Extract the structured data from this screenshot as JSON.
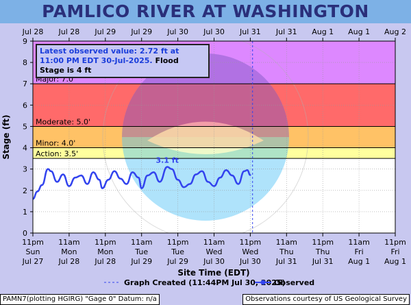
{
  "title": "PAMLICO RIVER AT WASHINGTON",
  "info": {
    "latest": "Latest observed value: 2.72 ft at 11:00 PM EDT 30-Jul-2025.",
    "flood": "Flood Stage is 4 ft"
  },
  "footer": {
    "left": "PAMN7(plotting HGIRG) \"Gage 0\" Datum: n/a",
    "right": "Observations courtesy of US Geological Survey"
  },
  "watermark_icon": "noaa-logo-icon",
  "chart_data": {
    "type": "line",
    "title": "PAMLICO RIVER AT WASHINGTON",
    "xlabel": "Site Time (EDT)",
    "ylabel": "Stage (ft)",
    "ylim": [
      0,
      9
    ],
    "yticks": [
      0,
      1,
      2,
      3,
      4,
      5,
      6,
      7,
      8,
      9
    ],
    "x_range_hours": [
      0,
      120
    ],
    "bottom_ticks": [
      {
        "h": 0,
        "l1": "11pm",
        "l2": "Sun",
        "l3": "Jul 27"
      },
      {
        "h": 12,
        "l1": "11am",
        "l2": "Mon",
        "l3": "Jul 28"
      },
      {
        "h": 24,
        "l1": "11pm",
        "l2": "Mon",
        "l3": "Jul 28"
      },
      {
        "h": 36,
        "l1": "11am",
        "l2": "Tue",
        "l3": "Jul 29"
      },
      {
        "h": 48,
        "l1": "11pm",
        "l2": "Tue",
        "l3": "Jul 29"
      },
      {
        "h": 60,
        "l1": "11am",
        "l2": "Wed",
        "l3": "Jul 30"
      },
      {
        "h": 72,
        "l1": "11pm",
        "l2": "Wed",
        "l3": "Jul 30"
      },
      {
        "h": 84,
        "l1": "11am",
        "l2": "Thu",
        "l3": "Jul 31"
      },
      {
        "h": 96,
        "l1": "11pm",
        "l2": "Thu",
        "l3": "Jul 31"
      },
      {
        "h": 108,
        "l1": "11am",
        "l2": "Fri",
        "l3": "Aug 1"
      },
      {
        "h": 120,
        "l1": "11pm",
        "l2": "Fri",
        "l3": "Aug 1"
      }
    ],
    "top_ticks": [
      {
        "h": 0,
        "label": "Jul 28"
      },
      {
        "h": 12,
        "label": "Jul 28"
      },
      {
        "h": 24,
        "label": "Jul 29"
      },
      {
        "h": 36,
        "label": "Jul 29"
      },
      {
        "h": 48,
        "label": "Jul 30"
      },
      {
        "h": 60,
        "label": "Jul 30"
      },
      {
        "h": 72,
        "label": "Jul 31"
      },
      {
        "h": 84,
        "label": "Jul 31"
      },
      {
        "h": 96,
        "label": "Aug  1"
      },
      {
        "h": 108,
        "label": "Aug  1"
      },
      {
        "h": 120,
        "label": "Aug  2"
      }
    ],
    "flood_categories": [
      {
        "label": "Major: 7.0'",
        "from": 7.0,
        "to": 9.0,
        "color": "#dd88ff"
      },
      {
        "label": "Moderate: 5.0'",
        "from": 5.0,
        "to": 7.0,
        "color": "#ff6a6a"
      },
      {
        "label": "Minor: 4.0'",
        "from": 4.0,
        "to": 5.0,
        "color": "#ffc266"
      },
      {
        "label": "Action: 3.5'",
        "from": 3.5,
        "to": 4.0,
        "color": "#ffff9e"
      }
    ],
    "graph_created_hour": 72.75,
    "peak_label": {
      "text": "3.1 ft",
      "h": 44.5,
      "value": 3.1
    },
    "series": [
      {
        "name": "Observed",
        "color": "#3344ee",
        "x": [
          0,
          1.5,
          3,
          5,
          6,
          8,
          10,
          12,
          14,
          16,
          18,
          20,
          22,
          23,
          25,
          27,
          29,
          31,
          33,
          35,
          36,
          38,
          40,
          42,
          44.5,
          46,
          48,
          50,
          52,
          54,
          56,
          58,
          60,
          62,
          64,
          66,
          68,
          70,
          71,
          72
        ],
        "values": [
          1.6,
          1.95,
          2.25,
          3.0,
          2.9,
          2.4,
          2.75,
          2.2,
          2.6,
          2.7,
          2.3,
          2.85,
          2.5,
          2.1,
          2.5,
          2.9,
          2.55,
          2.3,
          2.85,
          2.6,
          2.1,
          2.7,
          2.85,
          2.4,
          3.1,
          3.0,
          2.5,
          2.15,
          2.3,
          2.75,
          2.9,
          2.4,
          2.2,
          2.6,
          2.95,
          2.7,
          2.3,
          2.9,
          2.95,
          2.72
        ]
      }
    ],
    "legend": [
      {
        "name": "Graph Created (11:44PM Jul 30, 2025)",
        "style": "dashed"
      },
      {
        "name": "Observed",
        "style": "line-dot"
      }
    ],
    "legend_position": "bottom-center",
    "grid": true
  }
}
